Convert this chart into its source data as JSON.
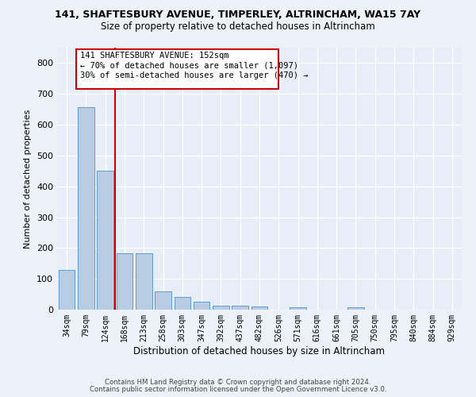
{
  "title": "141, SHAFTESBURY AVENUE, TIMPERLEY, ALTRINCHAM, WA15 7AY",
  "subtitle": "Size of property relative to detached houses in Altrincham",
  "xlabel": "Distribution of detached houses by size in Altrincham",
  "ylabel": "Number of detached properties",
  "categories": [
    "34sqm",
    "79sqm",
    "124sqm",
    "168sqm",
    "213sqm",
    "258sqm",
    "303sqm",
    "347sqm",
    "392sqm",
    "437sqm",
    "482sqm",
    "526sqm",
    "571sqm",
    "616sqm",
    "661sqm",
    "705sqm",
    "750sqm",
    "795sqm",
    "840sqm",
    "884sqm",
    "929sqm"
  ],
  "values": [
    128,
    658,
    452,
    183,
    183,
    60,
    42,
    25,
    12,
    13,
    11,
    0,
    9,
    0,
    0,
    8,
    0,
    0,
    0,
    0,
    0
  ],
  "bar_color": "#b8cce4",
  "bar_edge_color": "#5b9bd5",
  "vline_color": "#cc0000",
  "annotation_text1": "141 SHAFTESBURY AVENUE: 152sqm",
  "annotation_text2": "← 70% of detached houses are smaller (1,097)",
  "annotation_text3": "30% of semi-detached houses are larger (470) →",
  "annotation_box_edge": "#cc0000",
  "background_color": "#e8eef8",
  "grid_color": "#ffffff",
  "ylim": [
    0,
    850
  ],
  "yticks": [
    0,
    100,
    200,
    300,
    400,
    500,
    600,
    700,
    800
  ],
  "footer1": "Contains HM Land Registry data © Crown copyright and database right 2024.",
  "footer2": "Contains public sector information licensed under the Open Government Licence v3.0."
}
